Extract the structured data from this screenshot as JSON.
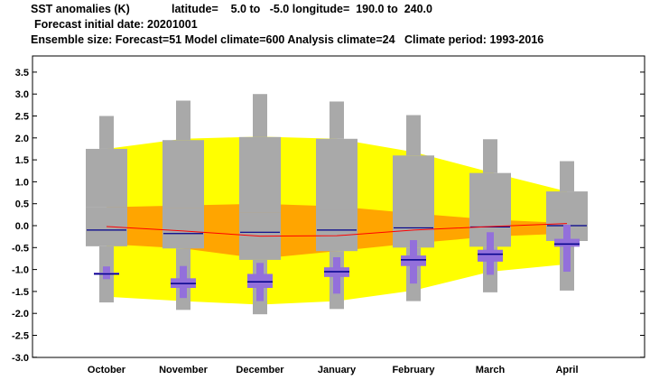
{
  "header": {
    "title": "SST anomalies (K)",
    "region": "latitude=    5.0 to   -5.0 longitude=  190.0 to  240.0",
    "forecast_date": "Forecast initial date: 20201001",
    "ensemble": "Ensemble size: Forecast=51 Model climate=600 Analysis climate=24   Climate period: 1993-2016"
  },
  "colors": {
    "outer_band": "#ffff00",
    "inner_band": "#ffa500",
    "climate_box": "#a9a9a9",
    "forecast_box": "#9370db",
    "median_line": "#00008b",
    "mean_line": "#ff0000"
  },
  "chart_data": {
    "type": "box-plume",
    "categories": [
      "October",
      "November",
      "December",
      "January",
      "February",
      "March",
      "April"
    ],
    "ylim": [
      -3.0,
      3.6
    ],
    "yticks": [
      "-3.0",
      "-2.5",
      "-2.0",
      "-1.5",
      "-1.0",
      "-0.5",
      "0.0",
      "0.5",
      "1.0",
      "1.5",
      "2.0",
      "2.5",
      "3.0",
      "3.5"
    ],
    "climate_plume_outer": {
      "upper": [
        1.75,
        1.98,
        2.03,
        1.98,
        1.68,
        1.22,
        0.78
      ],
      "lower": [
        -1.62,
        -1.72,
        -1.8,
        -1.72,
        -1.48,
        -1.05,
        -0.88
      ]
    },
    "climate_plume_inner": {
      "upper": [
        0.42,
        0.46,
        0.5,
        0.44,
        0.28,
        0.14,
        0.06
      ],
      "lower": [
        -0.42,
        -0.52,
        -0.75,
        -0.58,
        -0.4,
        -0.25,
        -0.18
      ]
    },
    "climate_mean_line": [
      -0.02,
      -0.12,
      -0.24,
      -0.23,
      -0.1,
      -0.02,
      0.05
    ],
    "climate_boxes": [
      {
        "min": -1.75,
        "p10": -0.45,
        "p25": -0.47,
        "median": -0.1,
        "p75": 0.42,
        "p90": 1.75,
        "max": 2.5
      },
      {
        "min": -1.92,
        "p10": -0.5,
        "p25": -0.52,
        "median": -0.18,
        "p75": 0.4,
        "p90": 1.95,
        "max": 2.85
      },
      {
        "min": -2.02,
        "p10": -0.75,
        "p25": -0.78,
        "median": -0.15,
        "p75": 0.3,
        "p90": 2.02,
        "max": 3.0
      },
      {
        "min": -1.9,
        "p10": -0.55,
        "p25": -0.58,
        "median": -0.1,
        "p75": 0.35,
        "p90": 1.98,
        "max": 2.83
      },
      {
        "min": -1.72,
        "p10": -0.4,
        "p25": -0.5,
        "median": -0.05,
        "p75": 0.35,
        "p90": 1.6,
        "max": 2.52
      },
      {
        "min": -1.52,
        "p10": -0.3,
        "p25": -0.48,
        "median": -0.03,
        "p75": 0.35,
        "p90": 1.2,
        "max": 1.97
      },
      {
        "min": -1.48,
        "p10": -0.25,
        "p25": -0.35,
        "median": 0.0,
        "p75": 0.35,
        "p90": 0.78,
        "max": 1.47
      }
    ],
    "forecast_boxes": [
      {
        "min": -1.22,
        "p25": -1.12,
        "median": -1.1,
        "p75": -1.07,
        "max": -0.93
      },
      {
        "min": -1.65,
        "p25": -1.42,
        "median": -1.32,
        "p75": -1.2,
        "max": -0.92
      },
      {
        "min": -1.72,
        "p25": -1.42,
        "median": -1.28,
        "p75": -1.1,
        "max": -0.85
      },
      {
        "min": -1.55,
        "p25": -1.17,
        "median": -1.05,
        "p75": -0.95,
        "max": -0.72
      },
      {
        "min": -1.32,
        "p25": -0.92,
        "median": -0.78,
        "p75": -0.68,
        "max": -0.33
      },
      {
        "min": -1.12,
        "p25": -0.82,
        "median": -0.65,
        "p75": -0.55,
        "max": -0.15
      },
      {
        "min": -1.05,
        "p25": -0.48,
        "median": -0.42,
        "p75": -0.3,
        "max": 0.02
      }
    ],
    "grid": false,
    "xlabel": "",
    "ylabel": ""
  }
}
